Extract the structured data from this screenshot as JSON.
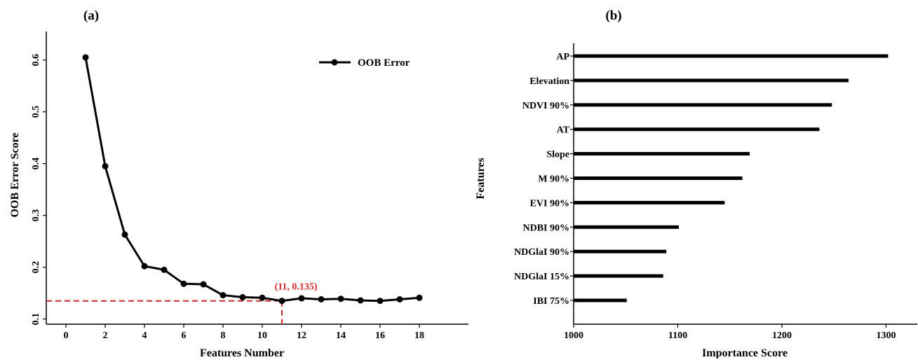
{
  "panels": {
    "a_label": "(a)",
    "b_label": "(b)"
  },
  "colors": {
    "line": "#000000",
    "annotation": "#d62728",
    "bar": "#000000"
  },
  "chart_data": [
    {
      "type": "line",
      "panel": "(a)",
      "xlabel": "Features Number",
      "ylabel": "OOB Error Score",
      "xlim": [
        -1,
        20.5
      ],
      "ylim": [
        0.09,
        0.655
      ],
      "xticks": [
        0,
        2,
        4,
        6,
        8,
        10,
        12,
        14,
        16,
        18
      ],
      "yticks": [
        0.1,
        0.2,
        0.3,
        0.4,
        0.5,
        0.6
      ],
      "ytick_labels": [
        "0.1",
        "0.2",
        "0.3",
        "0.4",
        "0.5",
        "0.6"
      ],
      "legend": "top-right",
      "grid": false,
      "series": [
        {
          "name": "OOB Error",
          "x": [
            1,
            2,
            3,
            4,
            5,
            6,
            7,
            8,
            9,
            10,
            11,
            12,
            13,
            14,
            15,
            16,
            17,
            18
          ],
          "y": [
            0.605,
            0.395,
            0.263,
            0.202,
            0.195,
            0.168,
            0.167,
            0.146,
            0.142,
            0.141,
            0.135,
            0.14,
            0.138,
            0.139,
            0.136,
            0.135,
            0.138,
            0.141
          ]
        }
      ],
      "annotation": {
        "text": "(11, 0.135)",
        "x": 11,
        "y": 0.135
      }
    },
    {
      "type": "bar",
      "orientation": "horizontal",
      "panel": "(b)",
      "xlabel": "Importance Score",
      "ylabel": "Features",
      "xlim": [
        1000,
        1330
      ],
      "xticks": [
        1000,
        1100,
        1200,
        1300
      ],
      "grid": false,
      "categories": [
        "AP",
        "Elevation",
        "NDVI 90%",
        "AT",
        "Slope",
        "M 90%",
        "EVI 90%",
        "NDBI 90%",
        "NDGlaI 90%",
        "NDGlaI 15%",
        "IBI 75%"
      ],
      "values": [
        1302,
        1264,
        1248,
        1236,
        1169,
        1162,
        1145,
        1101,
        1089,
        1086,
        1051
      ]
    }
  ]
}
